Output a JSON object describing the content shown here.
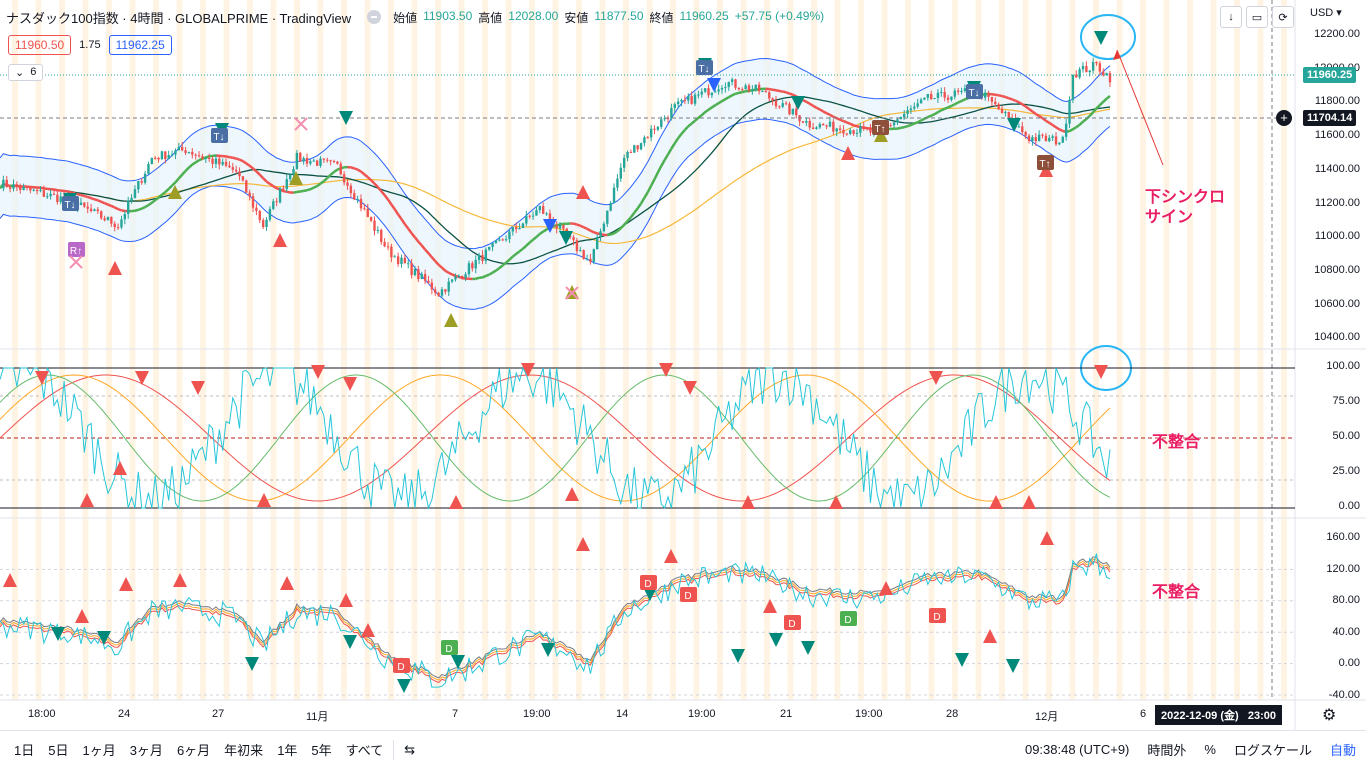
{
  "header": {
    "symbol_title": "ナスダック100指数 · 4時間 · GLOBALPRIME · TradingView",
    "ohlc": [
      {
        "label": "始値",
        "value": "11903.50"
      },
      {
        "label": "高値",
        "value": "12028.00"
      },
      {
        "label": "安値",
        "value": "11877.50"
      },
      {
        "label": "終値",
        "value": "11960.25"
      },
      {
        "label": "",
        "value": "+57.75 (+0.49%)"
      }
    ],
    "currency": "USD",
    "bid": "11960.50",
    "spread": "1.75",
    "ask": "11962.25",
    "collapsed_count": "6"
  },
  "price_axis": {
    "labels": [
      "12200.00",
      "12000.00",
      "11800.00",
      "11600.00",
      "11400.00",
      "11200.00",
      "11000.00",
      "10800.00",
      "10600.00",
      "10400.00"
    ],
    "current_price": "11960.25",
    "crosshair_price": "11704.14"
  },
  "osc1_axis": {
    "labels": [
      "100.00",
      "75.00",
      "50.00",
      "25.00",
      "0.00"
    ]
  },
  "osc2_axis": {
    "labels": [
      "160.00",
      "120.00",
      "80.00",
      "40.00",
      "0.00",
      "-40.00"
    ]
  },
  "time_axis": {
    "labels": [
      "18:00",
      "24",
      "27",
      "11月",
      "7",
      "19:00",
      "14",
      "19:00",
      "21",
      "19:00",
      "28",
      "12月",
      "6"
    ],
    "crosshair_date": "2022-12-09 (金)",
    "crosshair_time": "23:00"
  },
  "annotations": {
    "sell_sync": "下シンクロ\nサイン",
    "divergence1": "不整合",
    "divergence2": "不整合"
  },
  "bottom_bar": {
    "ranges": [
      "1日",
      "5日",
      "1ヶ月",
      "3ヶ月",
      "6ヶ月",
      "年初来",
      "1年",
      "5年",
      "すべて"
    ],
    "clock": "09:38:48 (UTC+9)",
    "session": "時間外",
    "percent": "%",
    "log": "ログスケール",
    "auto": "自動"
  },
  "colors": {
    "up": "#26a69a",
    "down": "#ef5350",
    "accent": "#2962ff",
    "annot": "#e91e63",
    "band": "#2962ff"
  }
}
